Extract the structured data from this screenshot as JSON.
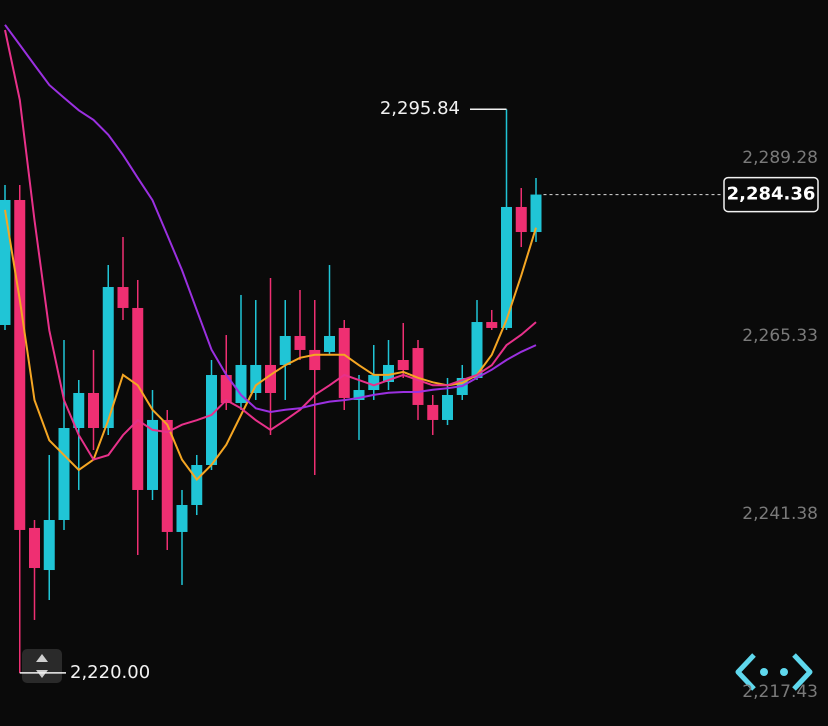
{
  "chart_data": {
    "type": "candlestick",
    "up_color": "#20c5d6",
    "down_color": "#ef2f72",
    "ylim": [
      2213.39,
      2310.54
    ],
    "yticks": [
      {
        "value": 2289.28,
        "label": "2,289.28"
      },
      {
        "value": 2265.33,
        "label": "2,265.33"
      },
      {
        "value": 2241.38,
        "label": "2,241.38"
      },
      {
        "value": 2217.43,
        "label": "2,217.43"
      }
    ],
    "open": [
      2266.81,
      2283.63,
      2239.5,
      2233.84,
      2240.57,
      2252.95,
      2257.66,
      2252.95,
      2271.92,
      2269.1,
      2244.61,
      2254.03,
      2238.96,
      2242.59,
      2247.97,
      2260.08,
      2256.31,
      2257.66,
      2261.43,
      2261.43,
      2265.33,
      2263.45,
      2263.18,
      2266.41,
      2256.72,
      2258.06,
      2259.14,
      2262.1,
      2263.71,
      2256.05,
      2254.03,
      2257.39,
      2259.68,
      2267.21,
      2266.41,
      2282.69,
      2279.32
    ],
    "high": [
      2285.65,
      2285.65,
      2240.57,
      2249.32,
      2264.79,
      2259.41,
      2263.45,
      2274.88,
      2278.65,
      2272.86,
      2258.06,
      2255.37,
      2244.61,
      2249.32,
      2262.1,
      2265.46,
      2270.85,
      2270.17,
      2273.13,
      2270.17,
      2271.52,
      2270.17,
      2274.88,
      2267.48,
      2260.08,
      2264.12,
      2264.79,
      2267.08,
      2264.79,
      2257.39,
      2259.68,
      2261.43,
      2270.17,
      2268.83,
      2295.84,
      2285.24,
      2286.59
    ],
    "low": [
      2266.14,
      2220.0,
      2227.12,
      2229.81,
      2239.23,
      2244.61,
      2249.99,
      2252.01,
      2267.48,
      2235.86,
      2243.26,
      2236.53,
      2231.83,
      2241.24,
      2247.3,
      2255.37,
      2255.37,
      2256.72,
      2252.01,
      2256.72,
      2262.1,
      2246.63,
      2262.77,
      2255.37,
      2251.34,
      2256.72,
      2258.06,
      2259.68,
      2254.03,
      2252.01,
      2253.35,
      2256.72,
      2259.41,
      2266.14,
      2266.14,
      2277.3,
      2277.98
    ],
    "close": [
      2283.63,
      2239.23,
      2234.11,
      2240.57,
      2252.95,
      2257.66,
      2252.95,
      2271.92,
      2269.1,
      2244.61,
      2254.03,
      2238.96,
      2242.59,
      2247.97,
      2260.08,
      2256.31,
      2261.43,
      2261.43,
      2257.66,
      2265.33,
      2263.45,
      2260.75,
      2265.33,
      2256.99,
      2258.06,
      2260.08,
      2261.43,
      2260.75,
      2256.05,
      2254.03,
      2257.39,
      2259.68,
      2267.21,
      2266.41,
      2282.69,
      2279.32,
      2284.36
    ],
    "series": [
      {
        "color": "#f5a623",
        "values": [
          2282.3,
          2270.2,
          2256.7,
          2251.3,
          2249.3,
          2247.3,
          2248.7,
          2254.0,
          2260.1,
          2258.7,
          2255.4,
          2253.4,
          2248.7,
          2246.0,
          2248.0,
          2250.7,
          2254.7,
          2258.7,
          2260.1,
          2261.4,
          2262.4,
          2262.8,
          2262.8,
          2262.8,
          2261.4,
          2260.1,
          2260.1,
          2260.5,
          2259.7,
          2259.1,
          2258.7,
          2259.0,
          2260.1,
          2262.8,
          2267.5,
          2273.5,
          2279.9
        ]
      },
      {
        "color": "#e8318a",
        "values": [
          2306.5,
          2297.1,
          2280.9,
          2266.1,
          2256.7,
          2252.0,
          2248.7,
          2249.3,
          2252.0,
          2254.0,
          2252.7,
          2252.4,
          2253.4,
          2254.0,
          2254.7,
          2256.7,
          2255.6,
          2254.0,
          2252.7,
          2254.0,
          2255.4,
          2257.4,
          2258.7,
          2260.1,
          2259.4,
          2258.7,
          2259.4,
          2260.1,
          2259.4,
          2258.7,
          2258.7,
          2259.4,
          2260.1,
          2261.4,
          2264.1,
          2265.5,
          2267.2
        ]
      },
      {
        "color": "#9b30e0",
        "values": [
          2307.2,
          2304.5,
          2301.8,
          2299.1,
          2297.4,
          2295.7,
          2294.4,
          2292.4,
          2289.7,
          2286.6,
          2283.6,
          2278.9,
          2274.2,
          2268.8,
          2263.5,
          2260.1,
          2257.4,
          2255.6,
          2255.1,
          2255.4,
          2255.6,
          2256.1,
          2256.5,
          2256.7,
          2257.0,
          2257.4,
          2257.7,
          2257.8,
          2257.8,
          2258.1,
          2258.3,
          2258.6,
          2259.7,
          2260.8,
          2262.1,
          2263.2,
          2264.1
        ]
      }
    ],
    "high_label": {
      "value": 2295.84,
      "label": "2,295.84"
    },
    "low_label": {
      "value": 2220.0,
      "label": "2,220.00"
    },
    "last_price": {
      "value": 2284.36,
      "label": "2,284.36"
    }
  }
}
